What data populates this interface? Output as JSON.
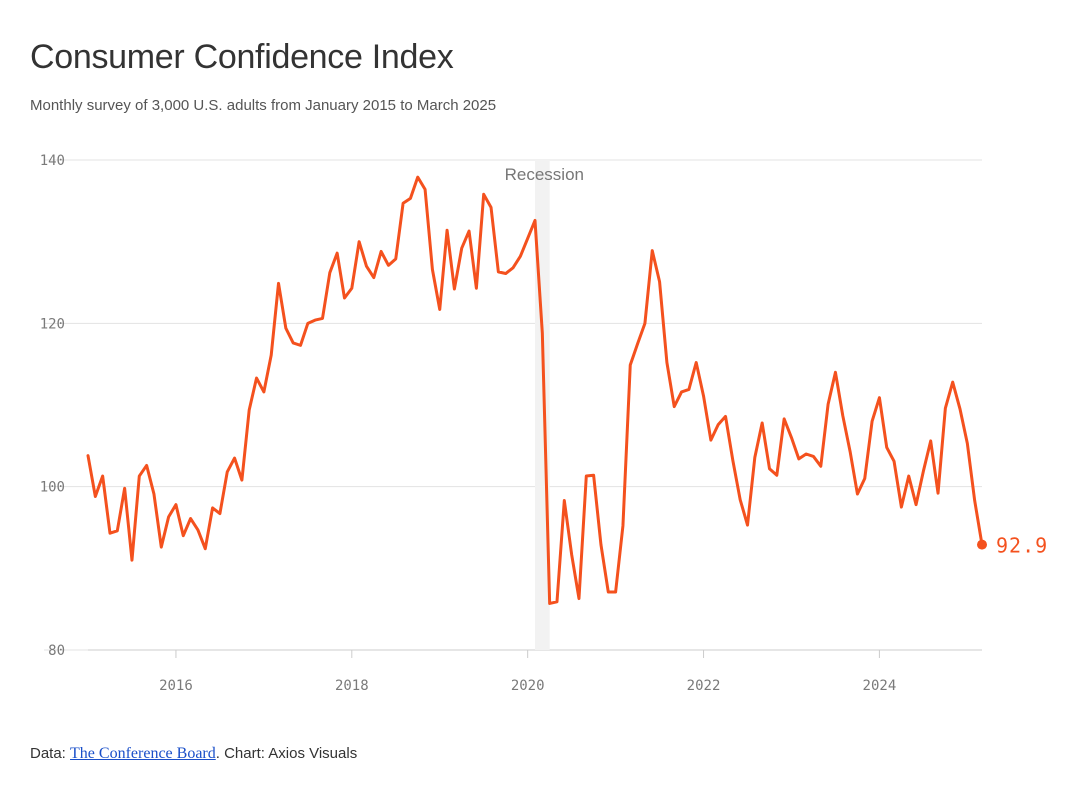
{
  "header": {
    "title": "Consumer Confidence Index",
    "subtitle": "Monthly survey of 3,000 U.S. adults from January 2015 to March 2025"
  },
  "footer": {
    "data_prefix": "Data: ",
    "source_link": "The Conference Board",
    "credit": ". Chart: Axios Visuals"
  },
  "colors": {
    "line": "#f4511e",
    "gridline": "#e3e3e3",
    "recession_band": "#f2f2f2",
    "tick_label": "#7a7a7a",
    "link": "#1a4fc9"
  },
  "chart_data": {
    "type": "line",
    "title": "Consumer Confidence Index",
    "subtitle": "Monthly survey of 3,000 U.S. adults from January 2015 to March 2025",
    "x_start": "2015-01",
    "x_frequency": "monthly",
    "xlim": [
      "2015-01",
      "2025-03"
    ],
    "ylim": [
      80,
      140
    ],
    "y_ticks": [
      "80",
      "100",
      "120",
      "140"
    ],
    "x_ticks": [
      "2016",
      "2018",
      "2020",
      "2022",
      "2024"
    ],
    "grid": true,
    "recession": {
      "label": "Recession",
      "start": "2020-02",
      "end": "2020-04"
    },
    "end_label": "92.9",
    "series": [
      {
        "values": [
          103.8,
          98.8,
          101.3,
          94.3,
          94.6,
          99.8,
          91.0,
          101.3,
          102.6,
          99.1,
          92.6,
          96.3,
          97.8,
          94.0,
          96.1,
          94.7,
          92.4,
          97.4,
          96.7,
          101.8,
          103.5,
          100.8,
          109.4,
          113.3,
          111.6,
          116.1,
          124.9,
          119.4,
          117.6,
          117.3,
          120.0,
          120.4,
          120.6,
          126.2,
          128.6,
          123.1,
          124.3,
          130.0,
          127.0,
          125.6,
          128.8,
          127.1,
          127.9,
          134.7,
          135.3,
          137.9,
          136.4,
          126.6,
          121.7,
          131.4,
          124.2,
          129.2,
          131.3,
          124.3,
          135.8,
          134.2,
          126.3,
          126.1,
          126.8,
          128.2,
          130.4,
          132.6,
          118.8,
          85.7,
          85.9,
          98.3,
          91.7,
          86.3,
          101.3,
          101.4,
          92.9,
          87.1,
          87.1,
          95.2,
          114.9,
          117.5,
          120.0,
          128.9,
          125.1,
          115.2,
          109.8,
          111.6,
          111.9,
          115.2,
          111.1,
          105.7,
          107.6,
          108.6,
          103.2,
          98.4,
          95.3,
          103.6,
          107.8,
          102.2,
          101.4,
          108.3,
          106.0,
          103.4,
          104.0,
          103.7,
          102.5,
          110.1,
          114.0,
          108.7,
          104.3,
          99.1,
          101.0,
          108.0,
          110.9,
          104.8,
          103.1,
          97.5,
          101.3,
          97.8,
          101.9,
          105.6,
          99.2,
          109.6,
          112.8,
          109.5,
          105.3,
          98.3,
          92.9
        ]
      }
    ]
  }
}
